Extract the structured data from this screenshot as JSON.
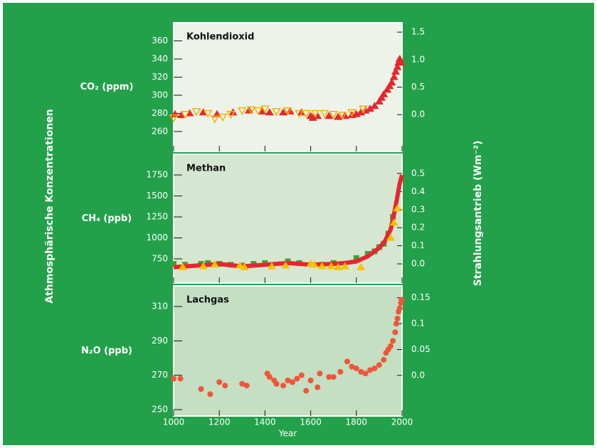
{
  "left_label": "Athmosphärische Konzentrationen",
  "right_label": "Strahlungsantrieb (Wm⁻²)",
  "chart_data": [
    {
      "type": "scatter",
      "title": "Kohlendioxid",
      "ylabel": "CO₂ (ppm)",
      "ylim": [
        238,
        380
      ],
      "yticks": [
        260,
        280,
        300,
        320,
        340,
        360
      ],
      "y2lim": [
        -0.67,
        1.67
      ],
      "y2ticks": [
        {
          "value": 0,
          "label": "0.0"
        },
        0.5,
        {
          "value": 1,
          "label": "1.0"
        },
        1.5
      ],
      "series": [
        {
          "marker": "triangle",
          "color": "#e8262e",
          "x": [
            1006,
            1035,
            1070,
            1130,
            1190,
            1260,
            1330,
            1390,
            1420,
            1480,
            1510,
            1560,
            1600,
            1610,
            1630,
            1680,
            1720,
            1750,
            1780,
            1800,
            1820,
            1840,
            1860,
            1880,
            1900,
            1910,
            1920,
            1935,
            1945,
            1955,
            1965,
            1972,
            1980,
            1985,
            1990,
            1995
          ],
          "values": [
            279,
            278,
            280,
            281,
            279,
            281,
            283,
            282,
            281,
            281,
            282,
            281,
            277,
            275,
            277,
            277,
            276,
            277,
            278,
            279,
            281,
            283,
            285,
            288,
            293,
            297,
            301,
            306,
            310,
            314,
            320,
            326,
            331,
            336,
            340,
            336
          ]
        },
        {
          "marker": "triangle-open",
          "color": "#f2b100",
          "x": [
            1000,
            1050,
            1100,
            1150,
            1180,
            1215,
            1250,
            1300,
            1340,
            1370,
            1400,
            1450,
            1500,
            1550,
            1580,
            1620,
            1660,
            1700,
            1740,
            1780,
            1830
          ],
          "values": [
            275,
            279,
            282,
            280,
            274,
            276,
            279,
            283,
            284,
            283,
            285,
            282,
            283,
            280,
            280,
            280,
            280,
            279,
            278,
            281,
            285
          ]
        }
      ]
    },
    {
      "type": "scatter",
      "title": "Methan",
      "ylabel": "CH₄ (ppb)",
      "ylim": [
        462,
        1996
      ],
      "yticks": [
        750,
        1000,
        1250,
        1500,
        1750
      ],
      "y2lim": [
        -0.106,
        0.606
      ],
      "y2ticks": [
        {
          "value": 0,
          "label": "0.0"
        },
        0.1,
        0.2,
        0.3,
        0.4,
        0.5
      ],
      "series": [
        {
          "marker": "square",
          "color": "#3aa23a",
          "x": [
            1000,
            1050,
            1120,
            1150,
            1200,
            1250,
            1300,
            1350,
            1400,
            1500,
            1550,
            1650,
            1700,
            1800,
            1850,
            1880,
            1900,
            1920,
            1940,
            1960
          ],
          "values": [
            690,
            680,
            690,
            700,
            690,
            680,
            670,
            690,
            700,
            720,
            700,
            680,
            700,
            760,
            810,
            840,
            890,
            930,
            1050,
            1250
          ]
        },
        {
          "marker": "line",
          "color": "#e8262e",
          "x": [
            1000,
            1100,
            1200,
            1300,
            1400,
            1500,
            1600,
            1700,
            1750,
            1800,
            1850,
            1900,
            1925,
            1950,
            1970,
            1980,
            1990,
            2000
          ],
          "values": [
            650,
            670,
            690,
            660,
            680,
            700,
            680,
            690,
            700,
            720,
            780,
            880,
            960,
            1100,
            1350,
            1500,
            1650,
            1750
          ]
        },
        {
          "marker": "triangle",
          "color": "#f7c200",
          "x": [
            1040,
            1130,
            1180,
            1290,
            1310,
            1430,
            1490,
            1600,
            1615,
            1650,
            1690,
            1720,
            1750,
            1820,
            1950,
            1965,
            1980
          ],
          "values": [
            650,
            660,
            680,
            670,
            650,
            660,
            670,
            690,
            680,
            660,
            660,
            650,
            660,
            650,
            1000,
            1180,
            1350
          ]
        }
      ]
    },
    {
      "type": "scatter",
      "title": "Lachgas",
      "ylabel": "N₂O (ppb)",
      "xlabel": "Year",
      "xlim": [
        1000,
        2000
      ],
      "xticks": [
        1000,
        1200,
        1400,
        1600,
        1800,
        2000
      ],
      "ylim": [
        246.3,
        322
      ],
      "yticks": [
        250,
        270,
        290,
        310
      ],
      "y2lim": [
        -0.0785,
        0.173
      ],
      "y2ticks": [
        {
          "value": 0,
          "label": "0.0"
        },
        0.05,
        0.1,
        0.15
      ],
      "series": [
        {
          "marker": "circle",
          "color": "#f0553a",
          "x": [
            1000,
            1030,
            1120,
            1160,
            1200,
            1225,
            1300,
            1320,
            1410,
            1420,
            1440,
            1450,
            1480,
            1500,
            1520,
            1540,
            1560,
            1580,
            1600,
            1630,
            1640,
            1680,
            1700,
            1730,
            1760,
            1780,
            1800,
            1820,
            1840,
            1860,
            1880,
            1900,
            1920,
            1930,
            1940,
            1950,
            1960,
            1970,
            1975,
            1980,
            1985,
            1990,
            1995,
            1998
          ],
          "values": [
            268,
            268,
            262,
            259,
            266,
            264,
            265,
            264,
            271,
            269,
            267,
            265,
            264,
            267,
            266,
            268,
            270,
            261,
            267,
            263,
            271,
            269,
            269,
            272,
            278,
            275,
            274,
            272,
            271,
            273,
            274,
            276,
            279,
            283,
            285,
            287,
            290,
            295,
            300,
            303,
            307,
            309,
            312,
            314
          ]
        }
      ]
    }
  ]
}
